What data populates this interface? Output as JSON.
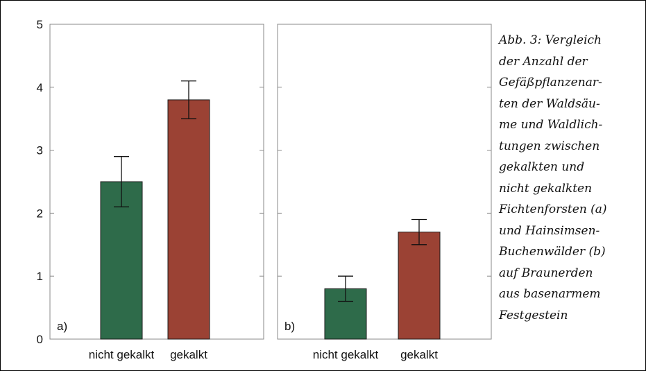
{
  "chart_data": [
    {
      "type": "bar",
      "panel_label": "a)",
      "categories": [
        "nicht gekalkt",
        "gekalkt"
      ],
      "values": [
        2.5,
        3.8
      ],
      "error_low": [
        2.1,
        3.5
      ],
      "error_high": [
        2.9,
        4.1
      ],
      "colors": [
        "#2e6b4a",
        "#9b4234"
      ],
      "ylim": [
        0,
        5
      ],
      "yticks": [
        0,
        1,
        2,
        3,
        4,
        5
      ]
    },
    {
      "type": "bar",
      "panel_label": "b)",
      "categories": [
        "nicht gekalkt",
        "gekalkt"
      ],
      "values": [
        0.8,
        1.7
      ],
      "error_low": [
        0.6,
        1.5
      ],
      "error_high": [
        1.0,
        1.9
      ],
      "colors": [
        "#2e6b4a",
        "#9b4234"
      ],
      "ylim": [
        0,
        5
      ],
      "yticks": [
        0,
        1,
        2,
        3,
        4,
        5
      ]
    }
  ],
  "caption": {
    "lines": [
      "Abb. 3: Vergleich",
      "der Anzahl der",
      "Gefäßpflanzenar-",
      "ten der Waldsäu-",
      "me und Waldlich-",
      "tungen zwischen",
      "gekalkten und",
      "nicht gekalkten",
      "Fichtenforsten (a)",
      "und Hainsimsen-",
      "Buchenwälder (b)",
      "auf Braunerden",
      "aus basenarmem",
      "Festgestein"
    ]
  }
}
